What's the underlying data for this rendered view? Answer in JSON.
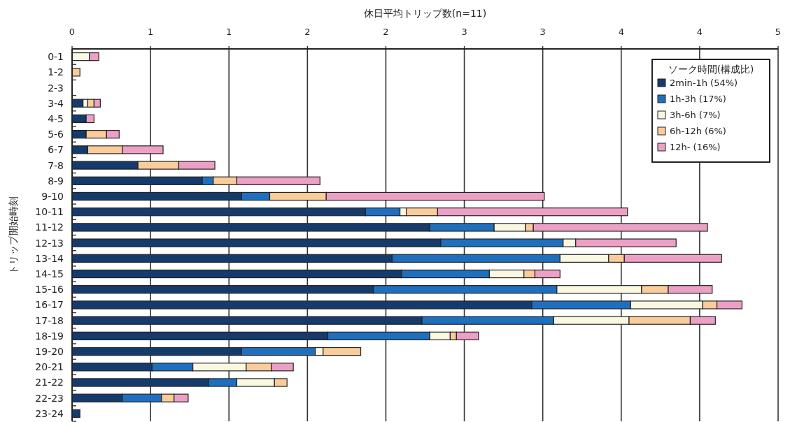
{
  "chart_data": {
    "type": "bar",
    "orientation": "horizontal",
    "stacked": true,
    "xlabel": "休日平均トリップ数(n=11)",
    "ylabel": "トリップ開始時刻",
    "legend_title": "ソーク時間(構成比)",
    "categories": [
      "0-1",
      "1-2",
      "2-3",
      "3-4",
      "4-5",
      "5-6",
      "6-7",
      "7-8",
      "8-9",
      "9-10",
      "10-11",
      "11-12",
      "12-13",
      "13-14",
      "14-15",
      "15-16",
      "16-17",
      "17-18",
      "18-19",
      "19-20",
      "20-21",
      "21-22",
      "22-23",
      "23-24"
    ],
    "xlim": [
      0,
      4.5
    ],
    "xticks": [
      0,
      {
        "value": 0.5,
        "label": "1"
      },
      1,
      {
        "value": 1.5,
        "label": "2"
      },
      2,
      {
        "value": 2.5,
        "label": "3"
      },
      3,
      {
        "value": 3.5,
        "label": "4"
      },
      4,
      {
        "value": 4.5,
        "label": "5"
      }
    ],
    "grid": "x",
    "legend": "top right",
    "series": [
      {
        "name": "2min-1h (54%)",
        "color": "#153b6d",
        "values": [
          0,
          0,
          0,
          0.07,
          0.09,
          0.09,
          0.1,
          0.42,
          0.83,
          1.08,
          1.87,
          2.28,
          2.35,
          2.04,
          2.1,
          1.92,
          2.93,
          2.23,
          1.63,
          1.08,
          0.51,
          0.87,
          0.32,
          0.05
        ]
      },
      {
        "name": "1h-3h (17%)",
        "color": "#1f6fbf",
        "values": [
          0,
          0,
          0,
          0,
          0,
          0,
          0,
          0,
          0.07,
          0.18,
          0.22,
          0.41,
          0.78,
          1.07,
          0.56,
          1.17,
          0.63,
          0.84,
          0.65,
          0.47,
          0.26,
          0.18,
          0.25,
          0
        ]
      },
      {
        "name": "3h-6h (7%)",
        "color": "#fbf8e1",
        "values": [
          0.11,
          0,
          0,
          0.03,
          0,
          0,
          0,
          0,
          0,
          0,
          0.04,
          0.2,
          0.08,
          0.31,
          0.22,
          0.54,
          0.46,
          0.48,
          0.13,
          0.05,
          0.34,
          0.24,
          0,
          0
        ]
      },
      {
        "name": "6h-12h (6%)",
        "color": "#f9cc9a",
        "values": [
          0,
          0.05,
          0,
          0.04,
          0,
          0.13,
          0.22,
          0.26,
          0.15,
          0.36,
          0.2,
          0.05,
          0,
          0.1,
          0.07,
          0.17,
          0.09,
          0.39,
          0.04,
          0.24,
          0.16,
          0.08,
          0.08,
          0
        ]
      },
      {
        "name": "12h- (16%)",
        "color": "#eda0c5",
        "values": [
          0.06,
          0,
          0,
          0.04,
          0.05,
          0.08,
          0.26,
          0.23,
          0.53,
          1.39,
          1.21,
          1.11,
          0.64,
          0.62,
          0.16,
          0.28,
          0.16,
          0.16,
          0.14,
          0,
          0.14,
          0,
          0.09,
          0
        ]
      }
    ]
  }
}
